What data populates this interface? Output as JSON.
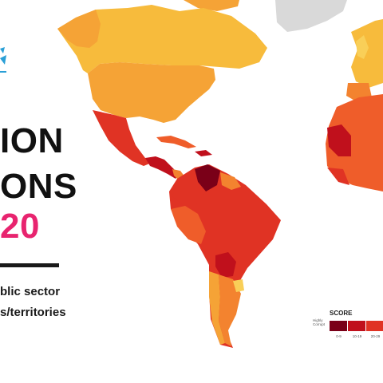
{
  "title": {
    "line1": "ION",
    "line2": "ONS",
    "line3": "20"
  },
  "subtitle": {
    "line1": "blic sector",
    "line2": "s/territories"
  },
  "legend": {
    "title": "SCORE",
    "highly_corrupt": "Highly Corrupt",
    "ranges": [
      "0-9",
      "10-19",
      "20-29"
    ]
  },
  "colors": {
    "title_text": "#111111",
    "highlight_text": "#e8246f",
    "logo_accent": "#2a9fd6",
    "ocean": "#ffffff",
    "no_data": "#d9d9d9",
    "score_0_9": "#7a0018",
    "score_10_19": "#c0101c",
    "score_20_29": "#e03324",
    "score_30_39": "#ef5d2a",
    "score_40_49": "#f3832f",
    "score_50_59": "#f5a336",
    "score_60_69": "#f7bb3c",
    "score_70_79": "#f9cf58"
  }
}
